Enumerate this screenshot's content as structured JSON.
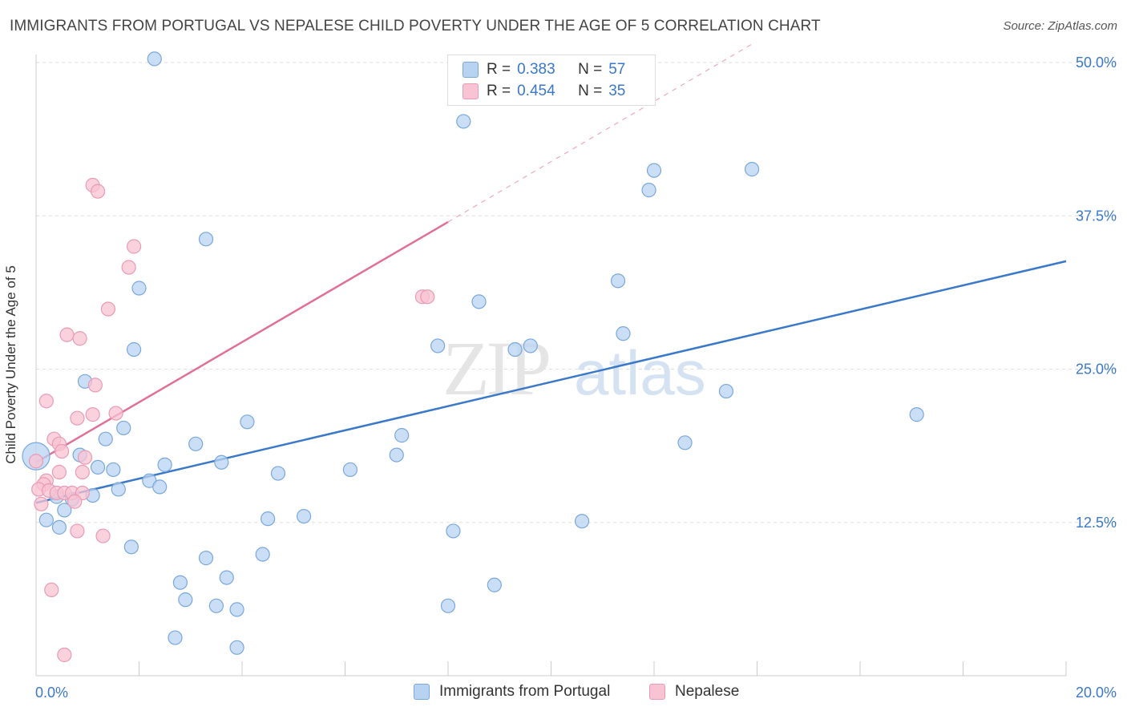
{
  "title": "IMMIGRANTS FROM PORTUGAL VS NEPALESE CHILD POVERTY UNDER THE AGE OF 5 CORRELATION CHART",
  "source": "Source: ZipAtlas.com",
  "watermark": {
    "zip": "ZIP",
    "atlas": "atlas"
  },
  "legend_top": [
    {
      "r_label": "R =",
      "r_value": "0.383",
      "n_label": "N =",
      "n_value": "57"
    },
    {
      "r_label": "R =",
      "r_value": "0.454",
      "n_label": "N =",
      "n_value": "35"
    }
  ],
  "legend_bottom": [
    {
      "label": "Immigrants from Portugal"
    },
    {
      "label": "Nepalese"
    }
  ],
  "colors": {
    "blue_fill": "#b8d3f2",
    "blue_stroke": "#7aa8dc",
    "blue_line": "#3a78c9",
    "pink_fill": "#f8c3d3",
    "pink_stroke": "#e99ab4",
    "pink_line": "#e07098",
    "tick_label": "#3a78c9",
    "grid": "#dddddd"
  },
  "chart_data": {
    "type": "scatter",
    "title": "IMMIGRANTS FROM PORTUGAL VS NEPALESE CHILD POVERTY UNDER THE AGE OF 5 CORRELATION CHART",
    "xlabel": "",
    "ylabel": "Child Poverty Under the Age of 5",
    "xlim": [
      0,
      20
    ],
    "ylim": [
      0,
      50
    ],
    "x_tick_labels": [
      {
        "value": 0,
        "label": "0.0%"
      },
      {
        "value": 20,
        "label": "20.0%"
      }
    ],
    "y_tick_labels": [
      {
        "value": 12.5,
        "label": "12.5%"
      },
      {
        "value": 25,
        "label": "25.0%"
      },
      {
        "value": 37.5,
        "label": "37.5%"
      },
      {
        "value": 50,
        "label": "50.0%"
      }
    ],
    "grid": true,
    "legend_position": "bottom",
    "series": [
      {
        "name": "Immigrants from Portugal",
        "points": [
          [
            2.3,
            50.3
          ],
          [
            8.3,
            45.2
          ],
          [
            12.0,
            41.2
          ],
          [
            13.9,
            41.3
          ],
          [
            11.9,
            39.6
          ],
          [
            3.3,
            35.6
          ],
          [
            11.3,
            32.2
          ],
          [
            2.0,
            31.6
          ],
          [
            8.6,
            30.5
          ],
          [
            11.4,
            27.9
          ],
          [
            7.8,
            26.9
          ],
          [
            9.6,
            26.9
          ],
          [
            9.3,
            26.6
          ],
          [
            1.9,
            26.6
          ],
          [
            0.95,
            24.0
          ],
          [
            13.4,
            23.2
          ],
          [
            17.1,
            21.3
          ],
          [
            4.1,
            20.7
          ],
          [
            1.7,
            20.2
          ],
          [
            7.1,
            19.6
          ],
          [
            1.35,
            19.3
          ],
          [
            3.1,
            18.9
          ],
          [
            12.6,
            19.0
          ],
          [
            0.85,
            18.0
          ],
          [
            0.0,
            17.9
          ],
          [
            7.0,
            18.0
          ],
          [
            3.6,
            17.4
          ],
          [
            2.5,
            17.2
          ],
          [
            1.2,
            17.0
          ],
          [
            1.5,
            16.8
          ],
          [
            6.1,
            16.8
          ],
          [
            4.7,
            16.5
          ],
          [
            2.2,
            15.9
          ],
          [
            2.4,
            15.4
          ],
          [
            1.6,
            15.2
          ],
          [
            1.1,
            14.7
          ],
          [
            0.4,
            14.6
          ],
          [
            0.7,
            14.4
          ],
          [
            0.55,
            13.5
          ],
          [
            5.2,
            13.0
          ],
          [
            4.5,
            12.8
          ],
          [
            0.2,
            12.7
          ],
          [
            10.6,
            12.6
          ],
          [
            0.45,
            12.1
          ],
          [
            8.1,
            11.8
          ],
          [
            1.85,
            10.5
          ],
          [
            4.4,
            9.9
          ],
          [
            3.3,
            9.6
          ],
          [
            3.7,
            8.0
          ],
          [
            2.8,
            7.6
          ],
          [
            8.9,
            7.4
          ],
          [
            2.9,
            6.2
          ],
          [
            3.5,
            5.7
          ],
          [
            3.9,
            5.4
          ],
          [
            8.0,
            5.7
          ],
          [
            2.7,
            3.1
          ],
          [
            3.9,
            2.3
          ]
        ]
      },
      {
        "name": "Nepalese",
        "points": [
          [
            1.1,
            40.0
          ],
          [
            1.2,
            39.5
          ],
          [
            1.9,
            35.0
          ],
          [
            1.8,
            33.3
          ],
          [
            1.4,
            29.9
          ],
          [
            7.5,
            30.9
          ],
          [
            7.6,
            30.9
          ],
          [
            0.6,
            27.8
          ],
          [
            0.85,
            27.5
          ],
          [
            1.15,
            23.7
          ],
          [
            0.2,
            22.4
          ],
          [
            1.55,
            21.4
          ],
          [
            1.1,
            21.3
          ],
          [
            0.8,
            21.0
          ],
          [
            0.35,
            19.3
          ],
          [
            0.45,
            18.9
          ],
          [
            0.5,
            18.3
          ],
          [
            0.95,
            17.8
          ],
          [
            0.0,
            17.5
          ],
          [
            0.45,
            16.6
          ],
          [
            0.9,
            16.6
          ],
          [
            0.2,
            15.9
          ],
          [
            0.15,
            15.6
          ],
          [
            0.05,
            15.2
          ],
          [
            0.25,
            15.1
          ],
          [
            0.4,
            14.9
          ],
          [
            0.55,
            14.9
          ],
          [
            0.7,
            14.9
          ],
          [
            0.9,
            14.9
          ],
          [
            0.75,
            14.2
          ],
          [
            0.1,
            14.0
          ],
          [
            0.8,
            11.8
          ],
          [
            1.3,
            11.4
          ],
          [
            0.3,
            7.0
          ],
          [
            0.55,
            1.7
          ]
        ]
      }
    ],
    "trend_lines": [
      {
        "series": "Immigrants from Portugal",
        "x": [
          0,
          20
        ],
        "y": [
          14.1,
          33.8
        ]
      },
      {
        "series": "Nepalese",
        "x": [
          0,
          8.0
        ],
        "y": [
          17.4,
          37.0
        ],
        "dashed_extension_to": [
          13.9,
          51.5
        ]
      }
    ]
  }
}
